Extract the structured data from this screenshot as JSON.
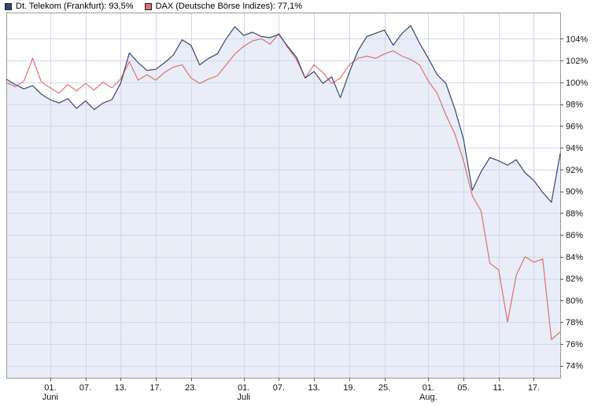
{
  "legend": {
    "items": [
      {
        "id": "telekom",
        "label": "Dt. Telekom (Frankfurt): 93,5%",
        "color": "#36466e"
      },
      {
        "id": "dax",
        "label": "DAX (Deutsche Börse Indizes): 77,1%",
        "color": "#df6e6e"
      }
    ]
  },
  "colors": {
    "background": "#ffffff",
    "plot_border": "#999999",
    "gridline": "#d0d7e8",
    "axis_tick": "#555555"
  },
  "chart_data": {
    "type": "line",
    "title": "",
    "legend_position": "top-left",
    "grid": true,
    "y_axis": {
      "unit": "%",
      "range": [
        72.9,
        106.4
      ],
      "ticks": [
        74,
        76,
        78,
        80,
        82,
        84,
        86,
        88,
        90,
        92,
        94,
        96,
        98,
        100,
        102,
        104
      ]
    },
    "x_axis": {
      "ticks": [
        {
          "index": 5,
          "label": "01.",
          "sub": "Juni"
        },
        {
          "index": 9,
          "label": "07."
        },
        {
          "index": 13,
          "label": "13."
        },
        {
          "index": 17,
          "label": "17."
        },
        {
          "index": 21,
          "label": "23."
        },
        {
          "index": 27,
          "label": "01.",
          "sub": "Juli"
        },
        {
          "index": 31,
          "label": "07."
        },
        {
          "index": 35,
          "label": "13."
        },
        {
          "index": 39,
          "label": "19."
        },
        {
          "index": 43,
          "label": "25."
        },
        {
          "index": 48,
          "label": "01.",
          "sub": "Aug."
        },
        {
          "index": 52,
          "label": "05."
        },
        {
          "index": 56,
          "label": "11."
        },
        {
          "index": 60,
          "label": "17."
        }
      ]
    },
    "series": [
      {
        "id": "telekom",
        "name": "Dt. Telekom (Frankfurt)",
        "current": "93,5%",
        "color": "#36466e",
        "area_fill": "#e9edf8",
        "values": [
          100.3,
          99.8,
          99.4,
          99.7,
          98.9,
          98.4,
          98.1,
          98.5,
          97.6,
          98.3,
          97.5,
          98.1,
          98.4,
          99.9,
          102.7,
          101.8,
          101.1,
          101.2,
          101.8,
          102.5,
          103.9,
          103.4,
          101.6,
          102.2,
          102.6,
          104.0,
          105.1,
          104.3,
          104.6,
          104.2,
          104.1,
          104.4,
          103.3,
          102.3,
          100.4,
          101.0,
          99.9,
          100.5,
          98.6,
          100.9,
          102.9,
          104.2,
          104.5,
          104.8,
          103.4,
          104.5,
          105.2,
          103.6,
          102.2,
          100.7,
          99.9,
          97.6,
          94.8,
          90.1,
          91.8,
          93.1,
          92.8,
          92.4,
          92.9,
          91.7,
          91.0,
          89.9,
          89.0,
          93.5
        ]
      },
      {
        "id": "dax",
        "name": "DAX (Deutsche Börse Indizes)",
        "current": "77,1%",
        "color": "#df6e6e",
        "values": [
          100.0,
          99.6,
          100.1,
          102.2,
          100.0,
          99.5,
          99.0,
          99.8,
          99.2,
          99.9,
          99.3,
          100.0,
          99.5,
          100.3,
          101.9,
          100.2,
          100.7,
          100.2,
          100.9,
          101.4,
          101.6,
          100.4,
          99.9,
          100.3,
          100.6,
          101.6,
          102.6,
          103.3,
          103.8,
          104.0,
          103.5,
          104.5,
          103.2,
          102.1,
          100.4,
          101.6,
          100.9,
          99.9,
          100.4,
          101.6,
          102.2,
          102.4,
          102.2,
          102.6,
          102.9,
          102.4,
          102.1,
          101.6,
          100.1,
          99.0,
          97.0,
          95.3,
          92.8,
          89.6,
          88.2,
          83.4,
          82.8,
          78.0,
          82.3,
          84.0,
          83.5,
          83.8,
          76.4,
          77.1
        ]
      }
    ]
  }
}
